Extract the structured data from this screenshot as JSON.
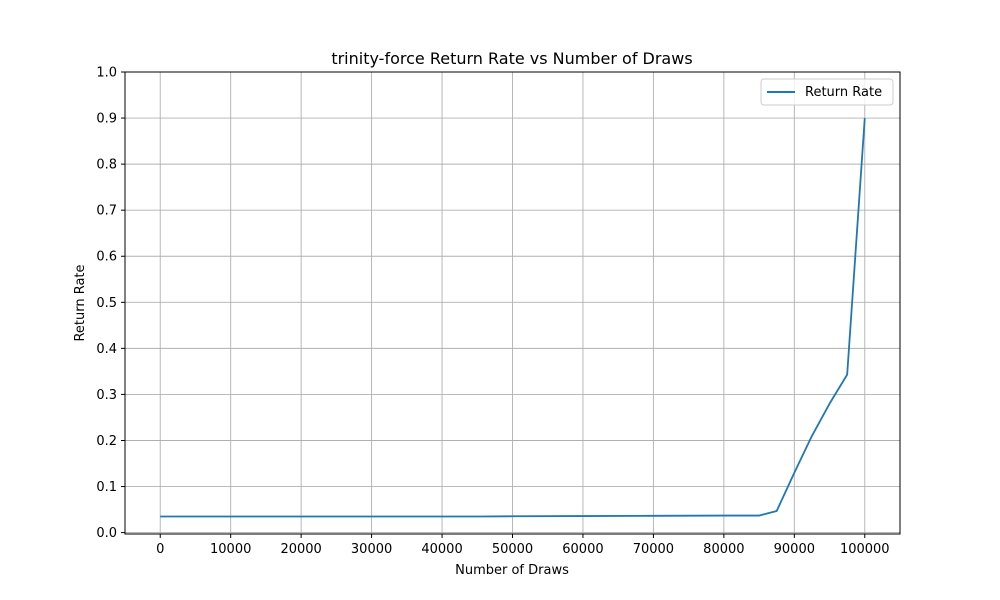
{
  "chart_data": {
    "type": "line",
    "title": "trinity-force Return Rate vs Number of Draws",
    "xlabel": "Number of Draws",
    "ylabel": "Return Rate",
    "xlim": [
      -5000,
      105000
    ],
    "ylim": [
      -0.003,
      1.0
    ],
    "xticks": [
      0,
      10000,
      20000,
      30000,
      40000,
      50000,
      60000,
      70000,
      80000,
      90000,
      100000
    ],
    "yticks": [
      0.0,
      0.1,
      0.2,
      0.3,
      0.4,
      0.5,
      0.6,
      0.7,
      0.8,
      0.9,
      1.0
    ],
    "grid": true,
    "legend_position": "top-right",
    "series": [
      {
        "name": "Return Rate",
        "color": "#1f77b4",
        "x": [
          0,
          10000,
          20000,
          30000,
          40000,
          45000,
          50000,
          60000,
          70000,
          80000,
          85000,
          87500,
          90000,
          92500,
          95000,
          97500,
          100000
        ],
        "y": [
          0.035,
          0.035,
          0.035,
          0.035,
          0.035,
          0.035,
          0.0355,
          0.036,
          0.0365,
          0.037,
          0.037,
          0.047,
          0.13,
          0.21,
          0.28,
          0.343,
          0.9
        ]
      }
    ]
  }
}
